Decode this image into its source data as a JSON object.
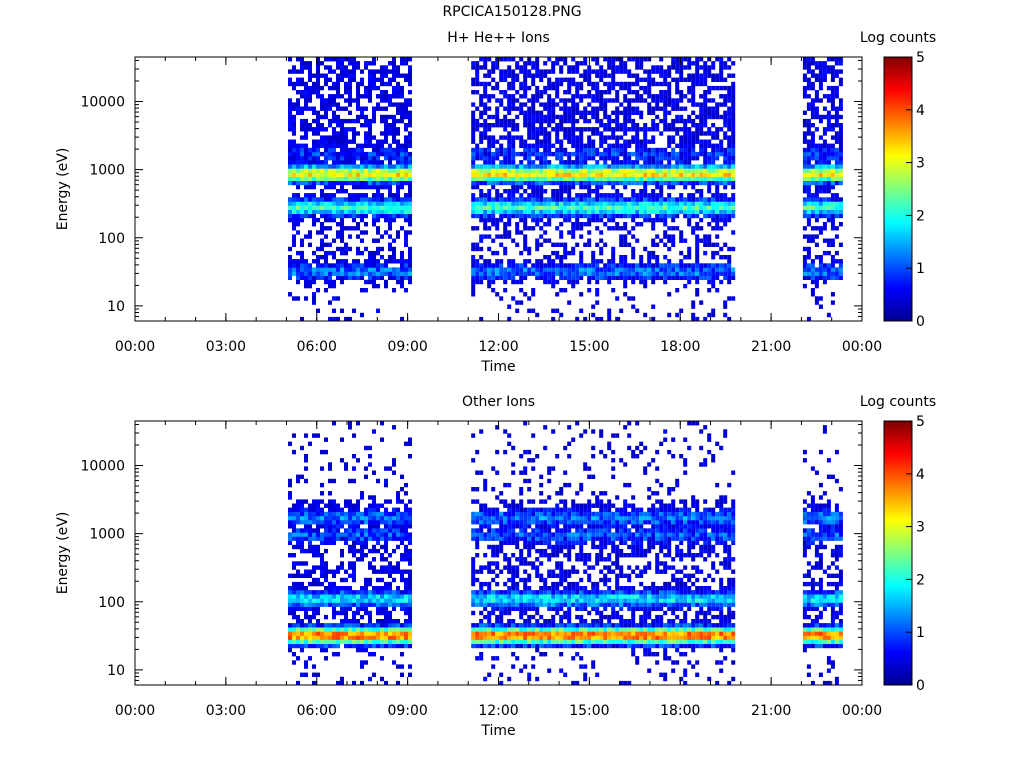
{
  "figure_title": "RPCICA150128.PNG",
  "chart_data": [
    {
      "type": "heatmap",
      "title": "H+ He++ Ions",
      "xlabel": "Time",
      "ylabel": "Energy (eV)",
      "x_ticks": [
        "00:00",
        "03:00",
        "06:00",
        "09:00",
        "12:00",
        "15:00",
        "18:00",
        "21:00",
        "00:00"
      ],
      "x_range_hours": [
        0,
        24
      ],
      "y_scale": "log",
      "y_ticks": [
        "10",
        "100",
        "1000",
        "10000"
      ],
      "y_range": [
        6,
        45000
      ],
      "colorbar": {
        "label": "Log counts",
        "ticks": [
          "0",
          "1",
          "2",
          "3",
          "4",
          "5"
        ],
        "range": [
          0,
          5
        ]
      },
      "data_intervals_hours": [
        [
          5.05,
          9.05
        ],
        [
          11.1,
          19.7
        ],
        [
          22.05,
          23.35
        ]
      ],
      "bands": [
        {
          "energy_ev": 870,
          "log_counts": 3.2,
          "note": "bright band ~1 keV"
        },
        {
          "energy_ev": 280,
          "log_counts": 2.2,
          "note": "band ~300 eV"
        },
        {
          "energy_ev": 32,
          "log_counts": 1.2,
          "note": "band ~30 eV"
        },
        {
          "energy_ev": 1700,
          "log_counts": 0.8,
          "note": "upper edge ~2 keV"
        }
      ],
      "background_log_counts": 0.3
    },
    {
      "type": "heatmap",
      "title": "Other Ions",
      "xlabel": "Time",
      "ylabel": "Energy (eV)",
      "x_ticks": [
        "00:00",
        "03:00",
        "06:00",
        "09:00",
        "12:00",
        "15:00",
        "18:00",
        "21:00",
        "00:00"
      ],
      "x_range_hours": [
        0,
        24
      ],
      "y_scale": "log",
      "y_ticks": [
        "10",
        "100",
        "1000",
        "10000"
      ],
      "y_range": [
        6,
        45000
      ],
      "colorbar": {
        "label": "Log counts",
        "ticks": [
          "0",
          "1",
          "2",
          "3",
          "4",
          "5"
        ],
        "range": [
          0,
          5
        ]
      },
      "data_intervals_hours": [
        [
          5.05,
          9.05
        ],
        [
          11.1,
          19.7
        ],
        [
          22.05,
          23.35
        ]
      ],
      "bands": [
        {
          "energy_ev": 32,
          "log_counts": 3.9,
          "note": "intense band ~30 eV"
        },
        {
          "energy_ev": 110,
          "log_counts": 1.8,
          "note": "broad 50-400 eV"
        },
        {
          "energy_ev": 1700,
          "log_counts": 1.2,
          "note": "line ~2 keV"
        },
        {
          "energy_ev": 950,
          "log_counts": 1.0,
          "note": "line ~1 keV"
        }
      ],
      "background_log_counts": 0.4
    }
  ]
}
